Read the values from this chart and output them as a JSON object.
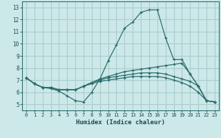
{
  "title": "",
  "xlabel": "Humidex (Indice chaleur)",
  "ylabel": "",
  "xlim": [
    -0.5,
    23.5
  ],
  "ylim": [
    4.5,
    13.5
  ],
  "xticks": [
    0,
    1,
    2,
    3,
    4,
    5,
    6,
    7,
    8,
    9,
    10,
    11,
    12,
    13,
    14,
    15,
    16,
    17,
    18,
    19,
    20,
    21,
    22,
    23
  ],
  "yticks": [
    5,
    6,
    7,
    8,
    9,
    10,
    11,
    12,
    13
  ],
  "background_color": "#cce8e8",
  "grid_color": "#aacccc",
  "line_color": "#2a6b6b",
  "series": [
    [
      7.2,
      6.7,
      6.4,
      6.3,
      6.1,
      5.7,
      5.3,
      5.2,
      6.0,
      7.1,
      8.6,
      9.9,
      11.3,
      11.8,
      12.6,
      12.8,
      12.8,
      10.5,
      8.7,
      8.7,
      7.5,
      6.5,
      5.3,
      5.2
    ],
    [
      7.2,
      6.7,
      6.4,
      6.4,
      6.2,
      6.2,
      6.2,
      6.5,
      6.8,
      7.1,
      7.3,
      7.5,
      7.7,
      7.8,
      7.9,
      8.0,
      8.1,
      8.2,
      8.3,
      8.4,
      7.5,
      6.5,
      5.3,
      5.2
    ],
    [
      7.2,
      6.7,
      6.4,
      6.4,
      6.2,
      6.2,
      6.2,
      6.5,
      6.8,
      7.0,
      7.2,
      7.3,
      7.4,
      7.5,
      7.6,
      7.6,
      7.6,
      7.5,
      7.3,
      7.1,
      6.9,
      6.5,
      5.3,
      5.2
    ],
    [
      7.2,
      6.7,
      6.4,
      6.4,
      6.2,
      6.2,
      6.2,
      6.5,
      6.7,
      6.9,
      7.0,
      7.1,
      7.2,
      7.3,
      7.3,
      7.3,
      7.3,
      7.2,
      7.0,
      6.8,
      6.5,
      6.0,
      5.3,
      5.2
    ]
  ]
}
